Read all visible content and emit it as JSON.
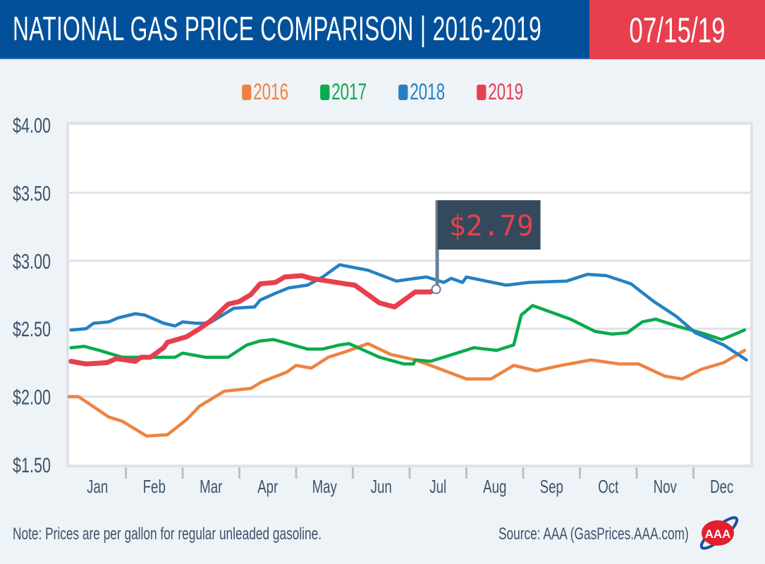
{
  "header": {
    "title": "NATIONAL GAS PRICE COMPARISON | 2016-2019",
    "date": "07/15/19"
  },
  "footer": {
    "note": "Note: Prices are per gallon for regular unleaded gasoline.",
    "source": "Source: AAA (GasPrices.AAA.com)",
    "logo_text": "AAA"
  },
  "callout": {
    "label": "$2.79",
    "date": "07-15",
    "value": 2.79
  },
  "chart_data": {
    "type": "line",
    "ylim": [
      1.5,
      4.0
    ],
    "y_ticks": [
      "$4.00",
      "$3.50",
      "$3.00",
      "$2.50",
      "$2.00",
      "$1.50"
    ],
    "y_tick_values": [
      4.0,
      3.5,
      3.0,
      2.5,
      2.0,
      1.5
    ],
    "categories": [
      "Jan",
      "Feb",
      "Mar",
      "Apr",
      "May",
      "Jun",
      "Jul",
      "Aug",
      "Sep",
      "Oct",
      "Nov",
      "Dec"
    ],
    "grid": true,
    "legend": "top-center",
    "series": [
      {
        "name": "2016",
        "color": "#ee8340",
        "points": [
          [
            "01-01",
            2.0
          ],
          [
            "01-06",
            2.0
          ],
          [
            "01-22",
            1.85
          ],
          [
            "01-29",
            1.82
          ],
          [
            "02-12",
            1.71
          ],
          [
            "02-23",
            1.72
          ],
          [
            "03-03",
            1.83
          ],
          [
            "03-10",
            1.93
          ],
          [
            "03-23",
            2.04
          ],
          [
            "04-07",
            2.06
          ],
          [
            "04-13",
            2.11
          ],
          [
            "04-26",
            2.18
          ],
          [
            "05-01",
            2.23
          ],
          [
            "05-09",
            2.21
          ],
          [
            "05-18",
            2.29
          ],
          [
            "05-27",
            2.33
          ],
          [
            "06-09",
            2.39
          ],
          [
            "06-21",
            2.31
          ],
          [
            "07-04",
            2.27
          ],
          [
            "07-12",
            2.23
          ],
          [
            "08-01",
            2.13
          ],
          [
            "08-14",
            2.13
          ],
          [
            "08-26",
            2.23
          ],
          [
            "09-08",
            2.19
          ],
          [
            "09-21",
            2.23
          ],
          [
            "10-07",
            2.27
          ],
          [
            "10-22",
            2.24
          ],
          [
            "11-02",
            2.24
          ],
          [
            "11-16",
            2.15
          ],
          [
            "11-25",
            2.13
          ],
          [
            "12-05",
            2.2
          ],
          [
            "12-17",
            2.25
          ],
          [
            "12-28",
            2.34
          ]
        ]
      },
      {
        "name": "2017",
        "color": "#0aaa4f",
        "points": [
          [
            "01-02",
            2.36
          ],
          [
            "01-09",
            2.37
          ],
          [
            "01-17",
            2.34
          ],
          [
            "01-29",
            2.29
          ],
          [
            "02-18",
            2.29
          ],
          [
            "02-27",
            2.29
          ],
          [
            "03-01",
            2.32
          ],
          [
            "03-13",
            2.29
          ],
          [
            "03-25",
            2.29
          ],
          [
            "04-05",
            2.38
          ],
          [
            "04-12",
            2.41
          ],
          [
            "04-19",
            2.42
          ],
          [
            "05-07",
            2.35
          ],
          [
            "05-15",
            2.35
          ],
          [
            "05-24",
            2.38
          ],
          [
            "05-29",
            2.39
          ],
          [
            "06-15",
            2.29
          ],
          [
            "06-28",
            2.24
          ],
          [
            "07-03",
            2.24
          ],
          [
            "07-04",
            2.27
          ],
          [
            "07-12",
            2.26
          ],
          [
            "07-19",
            2.29
          ],
          [
            "08-05",
            2.36
          ],
          [
            "08-17",
            2.34
          ],
          [
            "08-26",
            2.38
          ],
          [
            "08-30",
            2.6
          ],
          [
            "09-06",
            2.67
          ],
          [
            "09-14",
            2.63
          ],
          [
            "09-26",
            2.57
          ],
          [
            "10-09",
            2.48
          ],
          [
            "10-18",
            2.46
          ],
          [
            "10-26",
            2.47
          ],
          [
            "11-04",
            2.55
          ],
          [
            "11-11",
            2.57
          ],
          [
            "11-22",
            2.52
          ],
          [
            "12-05",
            2.47
          ],
          [
            "12-16",
            2.42
          ],
          [
            "12-23",
            2.46
          ],
          [
            "12-28",
            2.49
          ]
        ]
      },
      {
        "name": "2018",
        "color": "#2580c3",
        "points": [
          [
            "01-02",
            2.49
          ],
          [
            "01-10",
            2.5
          ],
          [
            "01-14",
            2.54
          ],
          [
            "01-22",
            2.55
          ],
          [
            "01-27",
            2.58
          ],
          [
            "02-06",
            2.61
          ],
          [
            "02-11",
            2.6
          ],
          [
            "02-21",
            2.54
          ],
          [
            "02-27",
            2.52
          ],
          [
            "03-01",
            2.55
          ],
          [
            "03-08",
            2.54
          ],
          [
            "03-15",
            2.54
          ],
          [
            "03-28",
            2.65
          ],
          [
            "04-09",
            2.66
          ],
          [
            "04-12",
            2.71
          ],
          [
            "04-20",
            2.76
          ],
          [
            "04-27",
            2.8
          ],
          [
            "05-07",
            2.82
          ],
          [
            "05-15",
            2.88
          ],
          [
            "05-24",
            2.97
          ],
          [
            "06-09",
            2.93
          ],
          [
            "06-24",
            2.85
          ],
          [
            "07-04",
            2.87
          ],
          [
            "07-10",
            2.88
          ],
          [
            "07-19",
            2.84
          ],
          [
            "07-23",
            2.87
          ],
          [
            "07-29",
            2.84
          ],
          [
            "08-01",
            2.88
          ],
          [
            "08-08",
            2.86
          ],
          [
            "08-22",
            2.82
          ],
          [
            "09-04",
            2.84
          ],
          [
            "09-24",
            2.85
          ],
          [
            "10-05",
            2.9
          ],
          [
            "10-15",
            2.89
          ],
          [
            "10-28",
            2.83
          ],
          [
            "11-10",
            2.7
          ],
          [
            "11-22",
            2.59
          ],
          [
            "12-02",
            2.47
          ],
          [
            "12-17",
            2.38
          ],
          [
            "12-29",
            2.27
          ]
        ]
      },
      {
        "name": "2019",
        "color": "#e73f4e",
        "points": [
          [
            "01-02",
            2.26
          ],
          [
            "01-10",
            2.24
          ],
          [
            "01-21",
            2.25
          ],
          [
            "01-26",
            2.28
          ],
          [
            "02-06",
            2.26
          ],
          [
            "02-09",
            2.29
          ],
          [
            "02-14",
            2.29
          ],
          [
            "02-21",
            2.36
          ],
          [
            "02-23",
            2.4
          ],
          [
            "03-03",
            2.44
          ],
          [
            "03-10",
            2.5
          ],
          [
            "03-16",
            2.56
          ],
          [
            "03-25",
            2.68
          ],
          [
            "03-31",
            2.7
          ],
          [
            "04-07",
            2.75
          ],
          [
            "04-12",
            2.83
          ],
          [
            "04-20",
            2.84
          ],
          [
            "04-25",
            2.88
          ],
          [
            "05-04",
            2.89
          ],
          [
            "05-09",
            2.87
          ],
          [
            "05-27",
            2.83
          ],
          [
            "06-02",
            2.82
          ],
          [
            "06-15",
            2.69
          ],
          [
            "06-23",
            2.66
          ],
          [
            "06-29",
            2.72
          ],
          [
            "07-04",
            2.77
          ],
          [
            "07-12",
            2.77
          ],
          [
            "07-15",
            2.79
          ]
        ]
      }
    ]
  }
}
